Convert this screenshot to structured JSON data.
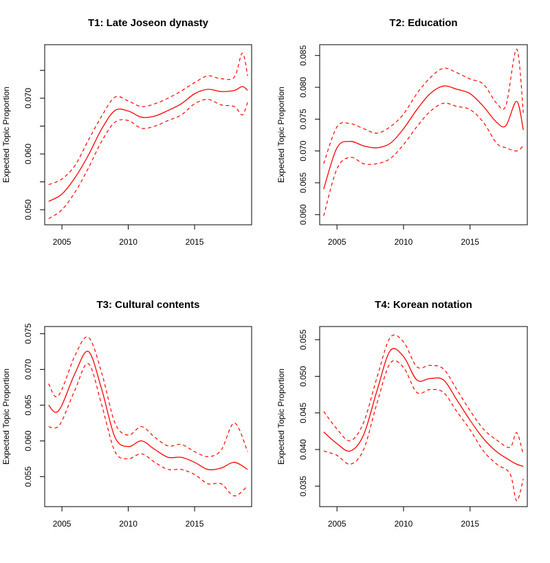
{
  "chart_data": [
    {
      "type": "line",
      "title": "T1: Late Joseon dynasty",
      "xlabel": "",
      "ylabel": "Expected Topic Proportion",
      "xlim": [
        2003.7,
        2019.3
      ],
      "ylim": [
        0.0473,
        0.0796
      ],
      "xticks": [
        2005,
        2010,
        2015
      ],
      "xtick_labels": [
        "2005",
        "2010",
        "2015"
      ],
      "yticks": [
        0.05,
        0.055,
        0.06,
        0.065,
        0.07,
        0.075
      ],
      "ytick_labels": [
        "0.050",
        "",
        "0.060",
        "",
        "0.070",
        ""
      ],
      "x": [
        2004,
        2005,
        2006,
        2007,
        2008,
        2009,
        2010,
        2011,
        2012,
        2013,
        2014,
        2015,
        2016,
        2017,
        2018,
        2018.6,
        2019
      ],
      "series": [
        {
          "style": "solid",
          "values": [
            0.0515,
            0.0528,
            0.0558,
            0.0598,
            0.0645,
            0.0678,
            0.0677,
            0.0666,
            0.0668,
            0.0678,
            0.069,
            0.0708,
            0.0716,
            0.0712,
            0.0714,
            0.0721,
            0.0714
          ]
        },
        {
          "style": "dashed",
          "values": [
            0.0545,
            0.0555,
            0.058,
            0.0625,
            0.0668,
            0.0702,
            0.0695,
            0.0685,
            0.069,
            0.07,
            0.0713,
            0.0728,
            0.074,
            0.0735,
            0.0738,
            0.0781,
            0.074
          ]
        },
        {
          "style": "dashed",
          "values": [
            0.0484,
            0.05,
            0.0532,
            0.0575,
            0.0623,
            0.0657,
            0.066,
            0.0646,
            0.065,
            0.066,
            0.067,
            0.069,
            0.0698,
            0.0688,
            0.0685,
            0.067,
            0.0693
          ]
        }
      ]
    },
    {
      "type": "line",
      "title": "T2: Education",
      "xlabel": "",
      "ylabel": "Expected Topic Proportion",
      "xlim": [
        2003.7,
        2019.3
      ],
      "ylim": [
        0.0584,
        0.0867
      ],
      "xticks": [
        2005,
        2010,
        2015
      ],
      "xtick_labels": [
        "2005",
        "2010",
        "2015"
      ],
      "yticks": [
        0.06,
        0.065,
        0.07,
        0.075,
        0.08,
        0.085
      ],
      "ytick_labels": [
        "0.060",
        "0.065",
        "0.070",
        "0.075",
        "0.080",
        "0.085"
      ],
      "x": [
        2004,
        2005,
        2006,
        2007,
        2008,
        2009,
        2010,
        2011,
        2012,
        2013,
        2014,
        2015,
        2016,
        2017,
        2017.7,
        2018.5,
        2019
      ],
      "series": [
        {
          "style": "solid",
          "values": [
            0.064,
            0.0705,
            0.0715,
            0.0708,
            0.0705,
            0.0712,
            0.0735,
            0.0765,
            0.079,
            0.0802,
            0.0797,
            0.079,
            0.077,
            0.0745,
            0.074,
            0.0778,
            0.0733
          ]
        },
        {
          "style": "dashed",
          "values": [
            0.068,
            0.0738,
            0.0743,
            0.0735,
            0.0728,
            0.0738,
            0.0758,
            0.079,
            0.0815,
            0.083,
            0.0823,
            0.0813,
            0.0805,
            0.0775,
            0.0772,
            0.086,
            0.076
          ]
        },
        {
          "style": "dashed",
          "values": [
            0.0598,
            0.0672,
            0.069,
            0.068,
            0.068,
            0.0688,
            0.071,
            0.0738,
            0.0762,
            0.0775,
            0.077,
            0.0765,
            0.0745,
            0.0712,
            0.0705,
            0.07,
            0.0708
          ]
        }
      ]
    },
    {
      "type": "line",
      "title": "T3: Cultural contents",
      "xlabel": "",
      "ylabel": "Expected Topic Proportion",
      "xlim": [
        2003.7,
        2019.3
      ],
      "ylim": [
        0.0508,
        0.076
      ],
      "xticks": [
        2005,
        2010,
        2015
      ],
      "xtick_labels": [
        "2005",
        "2010",
        "2015"
      ],
      "yticks": [
        0.055,
        0.06,
        0.065,
        0.07,
        0.075
      ],
      "ytick_labels": [
        "0.055",
        "0.060",
        "0.065",
        "0.070",
        "0.075"
      ],
      "x": [
        2004,
        2004.5,
        2005,
        2006,
        2007,
        2008,
        2009,
        2010,
        2011,
        2012,
        2013,
        2014,
        2015,
        2016,
        2017,
        2018,
        2019
      ],
      "series": [
        {
          "style": "solid",
          "values": [
            0.065,
            0.064,
            0.065,
            0.0695,
            0.0725,
            0.0672,
            0.0605,
            0.0592,
            0.06,
            0.0588,
            0.0577,
            0.0577,
            0.057,
            0.056,
            0.0562,
            0.057,
            0.056
          ]
        },
        {
          "style": "dashed",
          "values": [
            0.068,
            0.0662,
            0.0672,
            0.072,
            0.0745,
            0.0695,
            0.0625,
            0.0608,
            0.062,
            0.0605,
            0.0593,
            0.0595,
            0.0585,
            0.0578,
            0.0587,
            0.0625,
            0.0585
          ]
        },
        {
          "style": "dashed",
          "values": [
            0.062,
            0.0618,
            0.0628,
            0.0672,
            0.0708,
            0.065,
            0.0585,
            0.0575,
            0.0582,
            0.057,
            0.056,
            0.056,
            0.0553,
            0.054,
            0.054,
            0.0523,
            0.0537
          ]
        }
      ]
    },
    {
      "type": "line",
      "title": "T4: Korean notation",
      "xlabel": "",
      "ylabel": "Expected Topic Proportion",
      "xlim": [
        2003.7,
        2019.3
      ],
      "ylim": [
        0.0322,
        0.0568
      ],
      "xticks": [
        2005,
        2010,
        2015
      ],
      "xtick_labels": [
        "2005",
        "2010",
        "2015"
      ],
      "yticks": [
        0.035,
        0.04,
        0.045,
        0.05,
        0.055
      ],
      "ytick_labels": [
        "0.035",
        "0.040",
        "0.045",
        "0.050",
        "0.055"
      ],
      "x": [
        2004,
        2005,
        2006,
        2007,
        2008,
        2009,
        2010,
        2011,
        2012,
        2013,
        2014,
        2015,
        2016,
        2017,
        2018,
        2018.5,
        2019
      ],
      "series": [
        {
          "style": "solid",
          "values": [
            0.0424,
            0.0408,
            0.0398,
            0.042,
            0.048,
            0.0535,
            0.0527,
            0.0495,
            0.0497,
            0.0495,
            0.0468,
            0.044,
            0.0415,
            0.0397,
            0.0385,
            0.038,
            0.0377
          ]
        },
        {
          "style": "dashed",
          "values": [
            0.0452,
            0.0428,
            0.0412,
            0.0437,
            0.0498,
            0.0553,
            0.0547,
            0.0513,
            0.0515,
            0.051,
            0.0482,
            0.0453,
            0.0428,
            0.0413,
            0.0403,
            0.0423,
            0.0393
          ]
        },
        {
          "style": "dashed",
          "values": [
            0.0398,
            0.0392,
            0.038,
            0.04,
            0.0463,
            0.0518,
            0.0512,
            0.0478,
            0.0482,
            0.0478,
            0.0452,
            0.0427,
            0.0398,
            0.038,
            0.0367,
            0.033,
            0.036
          ]
        }
      ]
    }
  ]
}
